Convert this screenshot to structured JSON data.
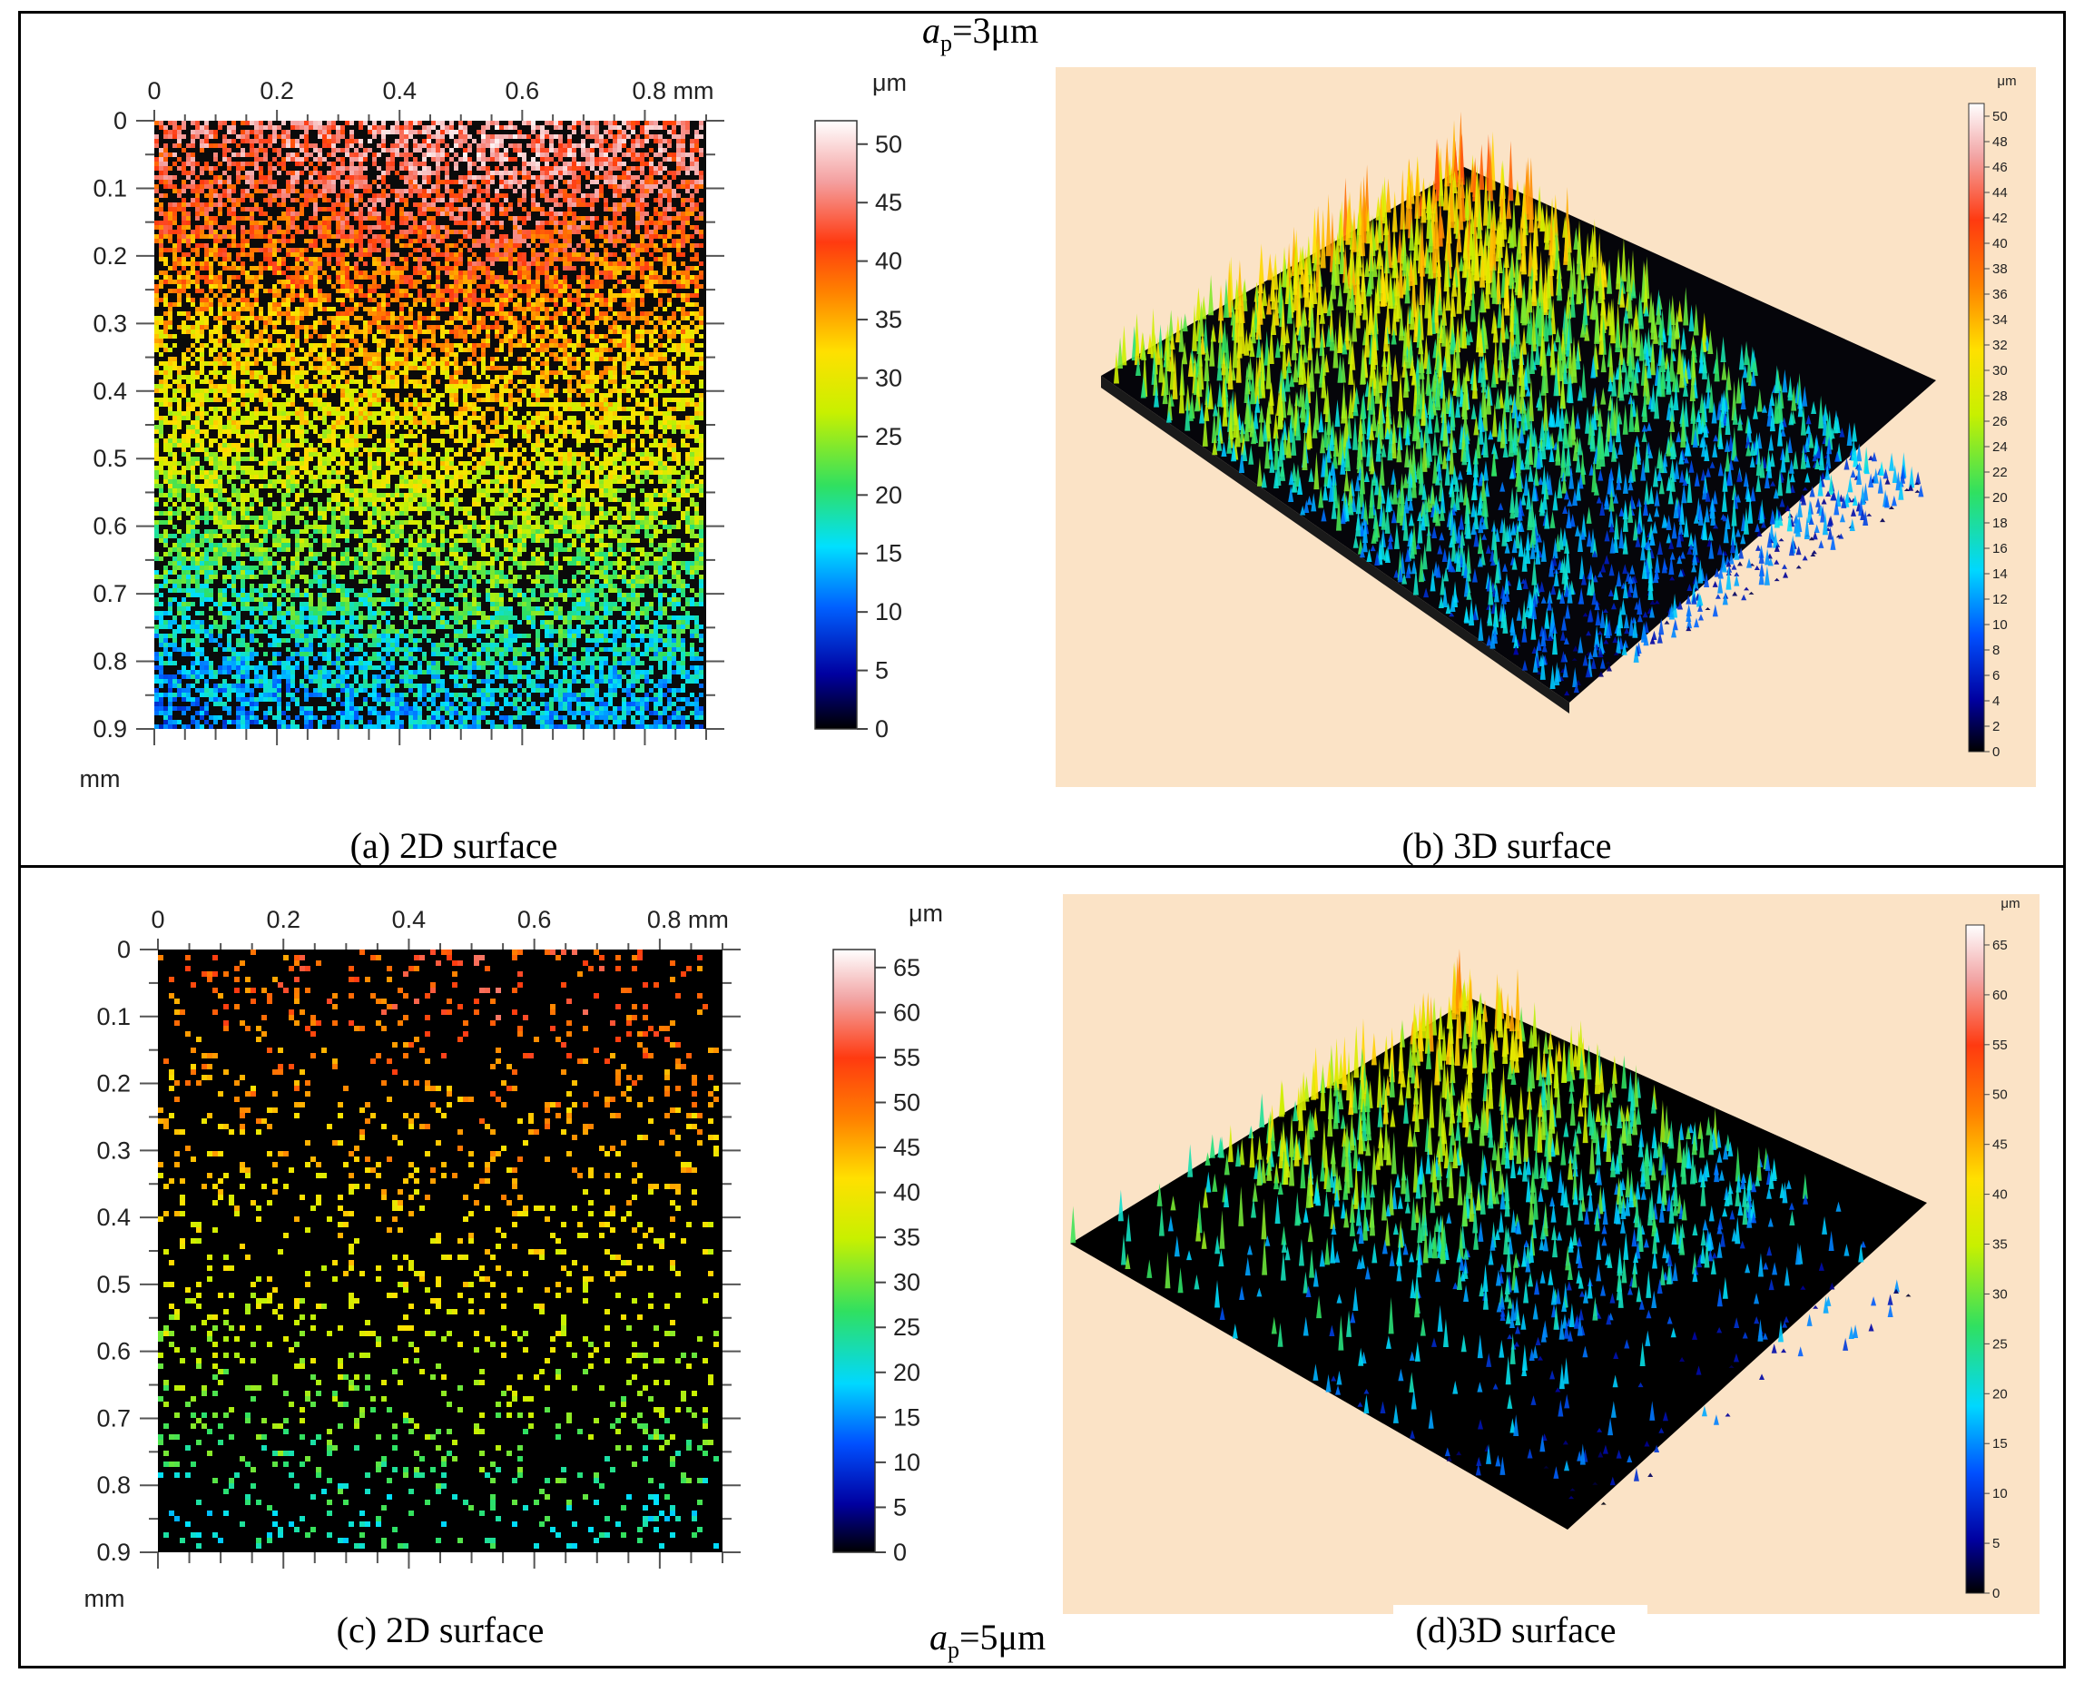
{
  "figure": {
    "condition_top": {
      "sym": "a",
      "sub": "p",
      "rest": "=3μm"
    },
    "condition_bottom": {
      "sym": "a",
      "sub": "p",
      "rest": "=5μm"
    },
    "captions": {
      "a": "(a) 2D surface",
      "b": "(b) 3D surface",
      "c": "(c) 2D surface",
      "d": "(d)3D surface"
    }
  },
  "chart_data": [
    {
      "id": "a",
      "type": "heatmap",
      "title": "",
      "x_ticks": [
        "0",
        "0.2",
        "0.4",
        "0.6",
        "0.8 mm"
      ],
      "y_ticks": [
        "0",
        "0.1",
        "0.2",
        "0.3",
        "0.4",
        "0.5",
        "0.6",
        "0.7",
        "0.8",
        "0.9"
      ],
      "y_unit": "mm",
      "xlim": [
        0,
        0.9
      ],
      "ylim": [
        0,
        0.9
      ],
      "colorbar": {
        "unit": "μm",
        "ticks": [
          "50",
          "45",
          "40",
          "35",
          "30",
          "25",
          "20",
          "15",
          "10",
          "5",
          "0"
        ],
        "range": [
          0,
          52
        ]
      },
      "height_trend": [
        {
          "y": 0.05,
          "height": 44
        },
        {
          "y": 0.2,
          "height": 38
        },
        {
          "y": 0.35,
          "height": 32
        },
        {
          "y": 0.5,
          "height": 28
        },
        {
          "y": 0.65,
          "height": 22
        },
        {
          "y": 0.8,
          "height": 15
        },
        {
          "y": 0.9,
          "height": 12
        }
      ],
      "density": 0.62
    },
    {
      "id": "b",
      "type": "area",
      "title": "",
      "colorbar": {
        "unit": "μm",
        "ticks": [
          "50",
          "48",
          "46",
          "44",
          "42",
          "40",
          "38",
          "36",
          "34",
          "32",
          "30",
          "28",
          "26",
          "24",
          "22",
          "20",
          "18",
          "16",
          "14",
          "12",
          "10",
          "8",
          "6",
          "4",
          "2",
          "0"
        ],
        "range": [
          0,
          51
        ]
      }
    },
    {
      "id": "c",
      "type": "heatmap",
      "title": "",
      "x_ticks": [
        "0",
        "0.2",
        "0.4",
        "0.6",
        "0.8 mm"
      ],
      "y_ticks": [
        "0",
        "0.1",
        "0.2",
        "0.3",
        "0.4",
        "0.5",
        "0.6",
        "0.7",
        "0.8",
        "0.9"
      ],
      "y_unit": "mm",
      "xlim": [
        0,
        0.9
      ],
      "ylim": [
        0,
        0.9
      ],
      "colorbar": {
        "unit": "μm",
        "ticks": [
          "65",
          "60",
          "55",
          "50",
          "45",
          "40",
          "35",
          "30",
          "25",
          "20",
          "15",
          "10",
          "5",
          "0"
        ],
        "range": [
          0,
          67
        ]
      },
      "height_trend": [
        {
          "y": 0.1,
          "height": 50
        },
        {
          "y": 0.25,
          "height": 44
        },
        {
          "y": 0.4,
          "height": 40
        },
        {
          "y": 0.55,
          "height": 36
        },
        {
          "y": 0.7,
          "height": 30
        },
        {
          "y": 0.85,
          "height": 22
        }
      ],
      "density": 0.13
    },
    {
      "id": "d",
      "type": "area",
      "title": "",
      "colorbar": {
        "unit": "μm",
        "ticks": [
          "65",
          "60",
          "55",
          "50",
          "45",
          "40",
          "35",
          "30",
          "25",
          "20",
          "15",
          "10",
          "5",
          "0"
        ],
        "range": [
          0,
          67
        ]
      }
    }
  ]
}
